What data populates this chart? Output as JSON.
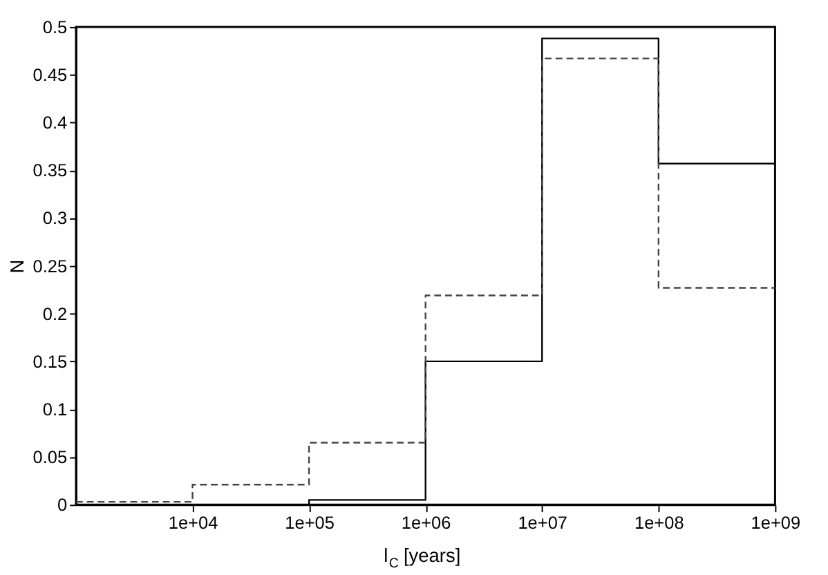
{
  "chart_data": {
    "type": "histogram",
    "xlabel": "l$_{C}$ [years]",
    "ylabel": "N",
    "bins": [
      1000,
      10000,
      100000,
      1000000,
      10000000,
      100000000,
      1000000000
    ],
    "series": [
      {
        "color": "#000000",
        "line_style": "solid",
        "values": [
          0,
          0,
          0.005,
          0.15,
          0.488,
          0.357
        ]
      },
      {
        "color": "#444444",
        "line_style": "dashed",
        "values": [
          0.003,
          0.021,
          0.065,
          0.219,
          0.467,
          0.227
        ]
      }
    ],
    "log": "x",
    "xlim": [
      1000,
      1000000000
    ],
    "xticks": [
      {
        "value": 10000,
        "label": "1e+04"
      },
      {
        "value": 100000,
        "label": "1e+05"
      },
      {
        "value": 1000000,
        "label": "1e+06"
      },
      {
        "value": 10000000,
        "label": "1e+07"
      },
      {
        "value": 100000000,
        "label": "1e+08"
      },
      {
        "value": 1000000000,
        "label": "1e+09"
      }
    ],
    "ylim": [
      0,
      0.5
    ],
    "yticks": [
      0,
      0.05,
      0.1,
      0.15,
      0.2,
      0.25,
      0.3,
      0.35,
      0.4,
      0.45,
      0.5
    ],
    "grid": false
  }
}
